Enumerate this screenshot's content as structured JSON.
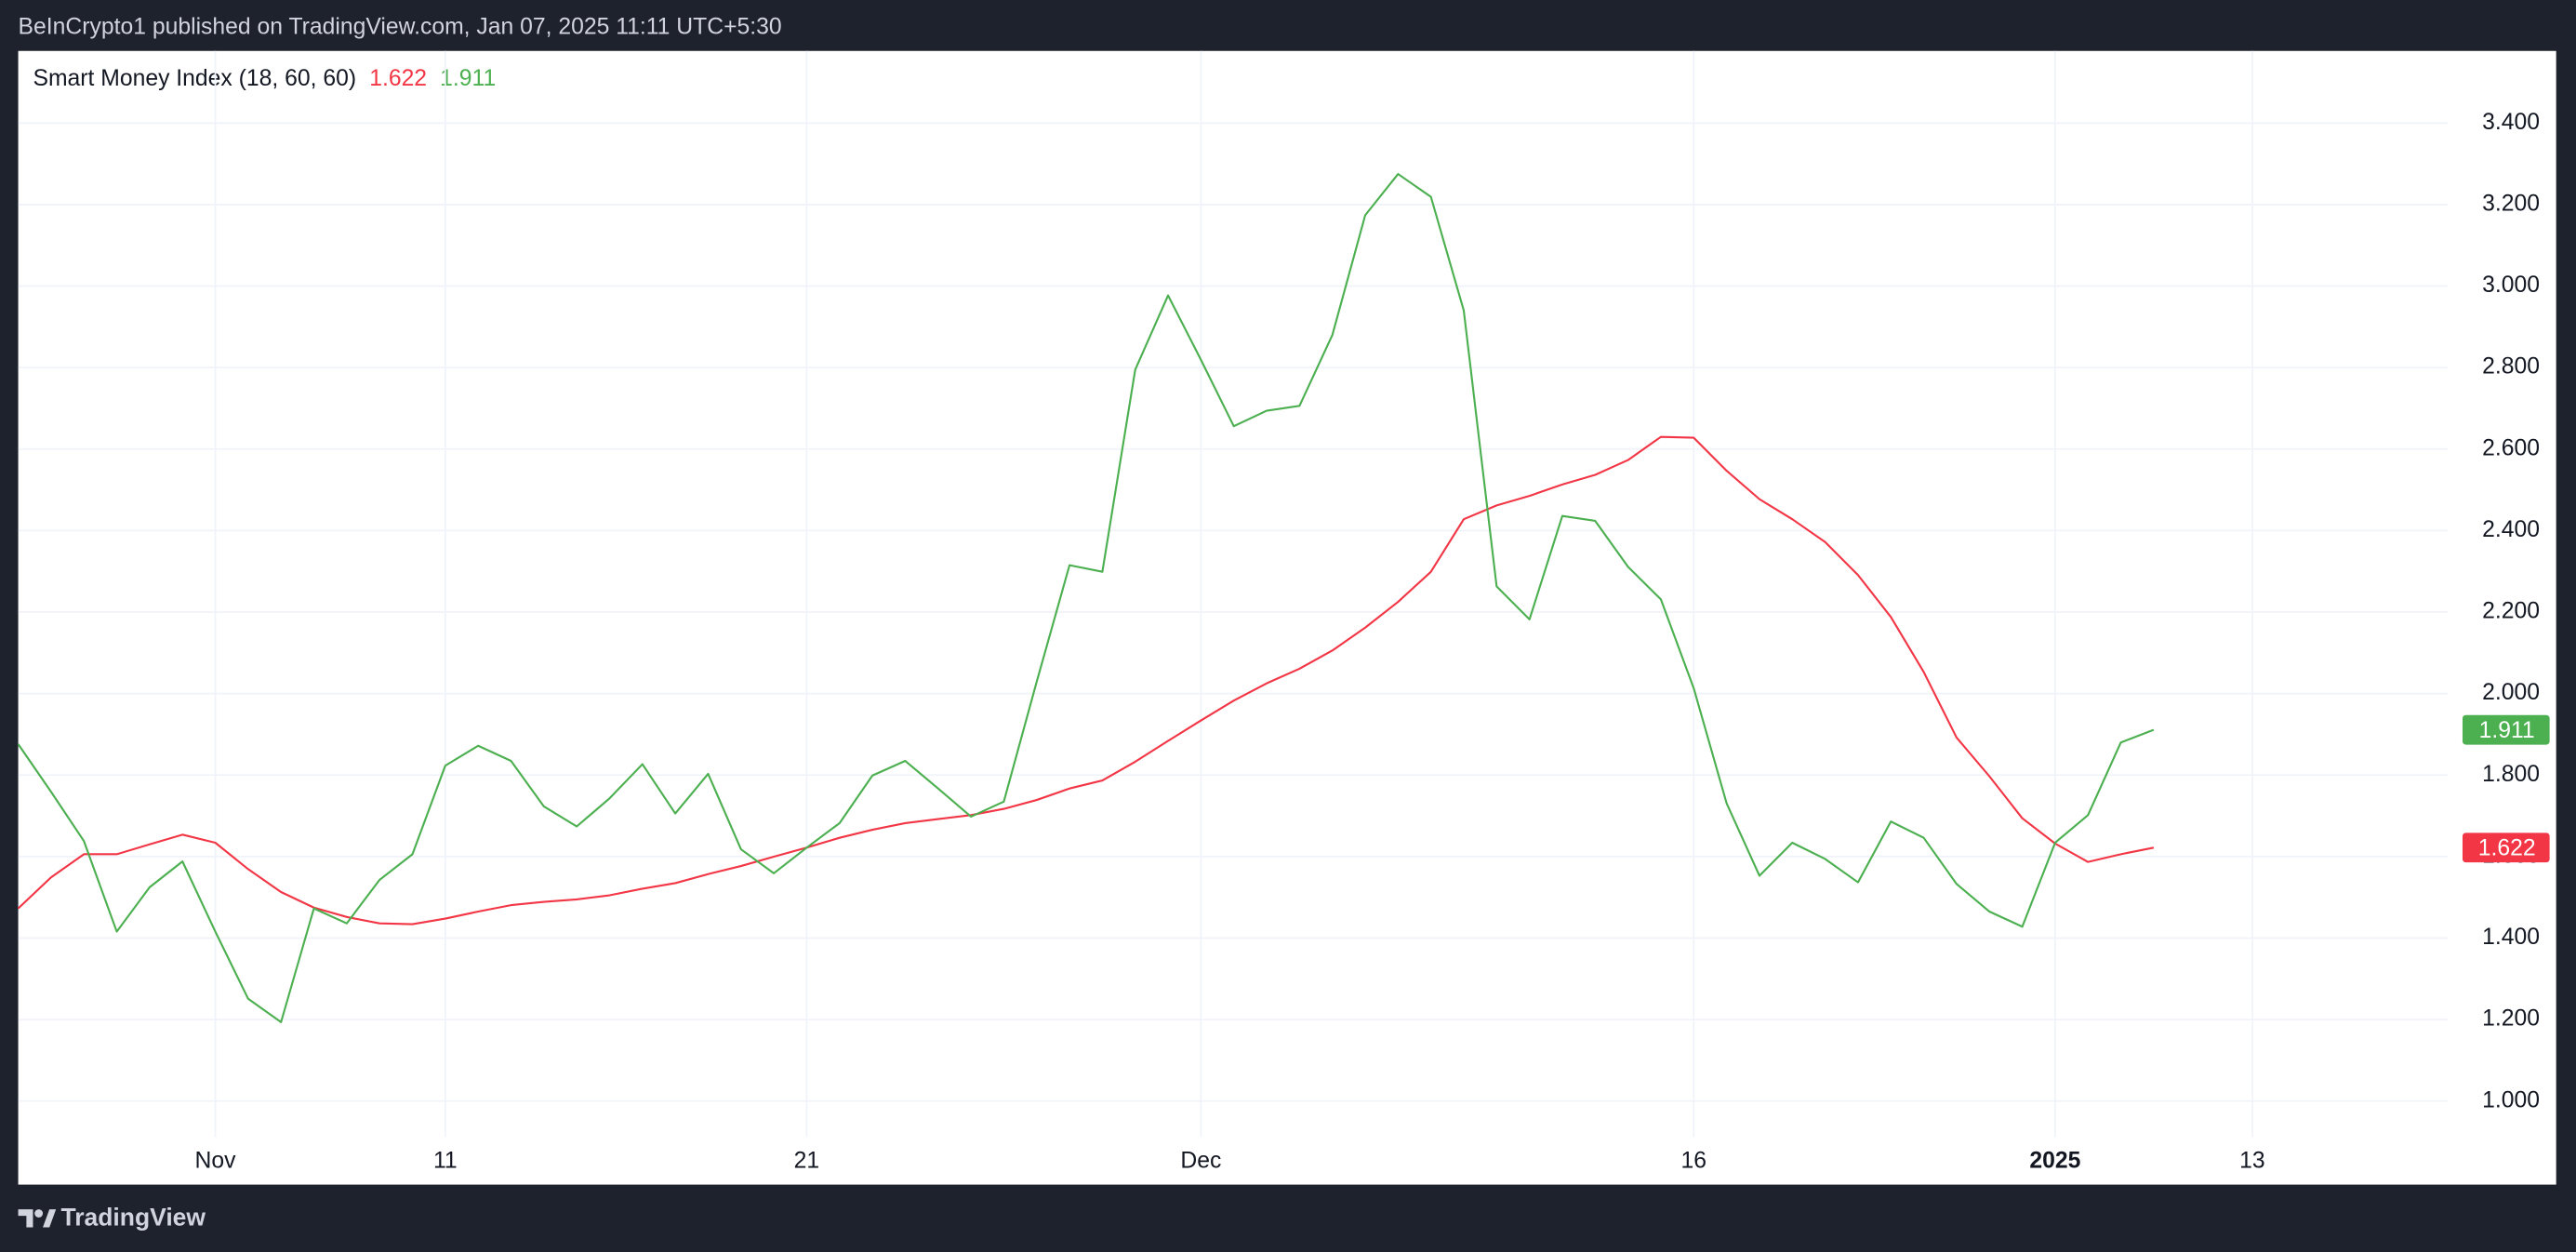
{
  "chart_data": {
    "type": "line",
    "header": "BeInCrypto1 published on TradingView.com, Jan 07, 2025 11:11 UTC+5:30",
    "footer": "TradingView",
    "indicator": "Smart Money Index (18, 60, 60)",
    "categories": [
      null,
      null,
      null,
      null,
      null,
      null,
      "Nov",
      null,
      null,
      null,
      null,
      null,
      null,
      "11",
      null,
      null,
      null,
      null,
      null,
      null,
      null,
      null,
      null,
      null,
      "21",
      null,
      null,
      null,
      null,
      null,
      null,
      null,
      null,
      null,
      null,
      null,
      "Dec",
      null,
      null,
      null,
      null,
      null,
      null,
      null,
      null,
      null,
      null,
      null,
      null,
      null,
      null,
      "16",
      null,
      null,
      null,
      null,
      null,
      null,
      null,
      null,
      null,
      null,
      "2025",
      null,
      null,
      null,
      null,
      null,
      "13",
      null,
      null,
      null,
      null,
      null,
      null,
      null,
      null,
      null
    ],
    "series": [
      {
        "color": "#f23645",
        "values": [
          1.473,
          1.549,
          1.606,
          1.606,
          1.63,
          1.654,
          1.634,
          1.569,
          1.513,
          1.475,
          1.452,
          1.436,
          1.434,
          1.448,
          1.465,
          1.481,
          1.489,
          1.495,
          1.505,
          1.521,
          1.535,
          1.557,
          1.577,
          1.6,
          1.622,
          1.646,
          1.666,
          1.682,
          1.692,
          1.702,
          1.717,
          1.739,
          1.767,
          1.787,
          1.833,
          1.884,
          1.934,
          1.983,
          2.025,
          2.061,
          2.106,
          2.162,
          2.225,
          2.299,
          2.428,
          2.462,
          2.485,
          2.513,
          2.537,
          2.573,
          2.63,
          2.628,
          2.547,
          2.477,
          2.428,
          2.372,
          2.291,
          2.188,
          2.053,
          1.892,
          1.797,
          1.694,
          1.632,
          1.587,
          1.606,
          1.622,
          null,
          null,
          null,
          null,
          null,
          null,
          null,
          null,
          null,
          null,
          null,
          null
        ]
      },
      {
        "color": "#4caf50",
        "values": [
          1.876,
          1.759,
          1.638,
          1.416,
          1.525,
          1.588,
          1.416,
          1.251,
          1.194,
          1.473,
          1.436,
          1.543,
          1.606,
          1.823,
          1.872,
          1.835,
          1.723,
          1.674,
          1.743,
          1.827,
          1.706,
          1.803,
          1.618,
          1.559,
          1.622,
          1.682,
          1.799,
          1.835,
          1.767,
          1.698,
          1.735,
          2.029,
          2.315,
          2.299,
          2.795,
          2.977,
          2.819,
          2.656,
          2.694,
          2.706,
          2.88,
          3.174,
          3.275,
          3.219,
          2.94,
          2.263,
          2.182,
          2.436,
          2.424,
          2.311,
          2.231,
          2.013,
          1.731,
          1.553,
          1.634,
          1.594,
          1.537,
          1.686,
          1.646,
          1.533,
          1.465,
          1.428,
          1.634,
          1.702,
          1.88,
          1.911,
          null,
          null,
          null,
          null,
          null,
          null,
          null,
          null,
          null,
          null,
          null,
          null
        ]
      }
    ],
    "ylim": [
      0.912,
      3.577
    ],
    "yticks": [
      {
        "value": 1.0,
        "label": "1.000"
      },
      {
        "value": 1.2,
        "label": "1.200"
      },
      {
        "value": 1.4,
        "label": "1.400"
      },
      {
        "value": 1.6,
        "label": "1.600"
      },
      {
        "value": 1.8,
        "label": "1.800"
      },
      {
        "value": 2.0,
        "label": "2.000"
      },
      {
        "value": 2.2,
        "label": "2.200"
      },
      {
        "value": 2.4,
        "label": "2.400"
      },
      {
        "value": 2.6,
        "label": "2.600"
      },
      {
        "value": 2.8,
        "label": "2.800"
      },
      {
        "value": 3.0,
        "label": "3.000"
      },
      {
        "value": 3.2,
        "label": "3.200"
      },
      {
        "value": 3.4,
        "label": "3.400"
      }
    ],
    "grid": true
  }
}
